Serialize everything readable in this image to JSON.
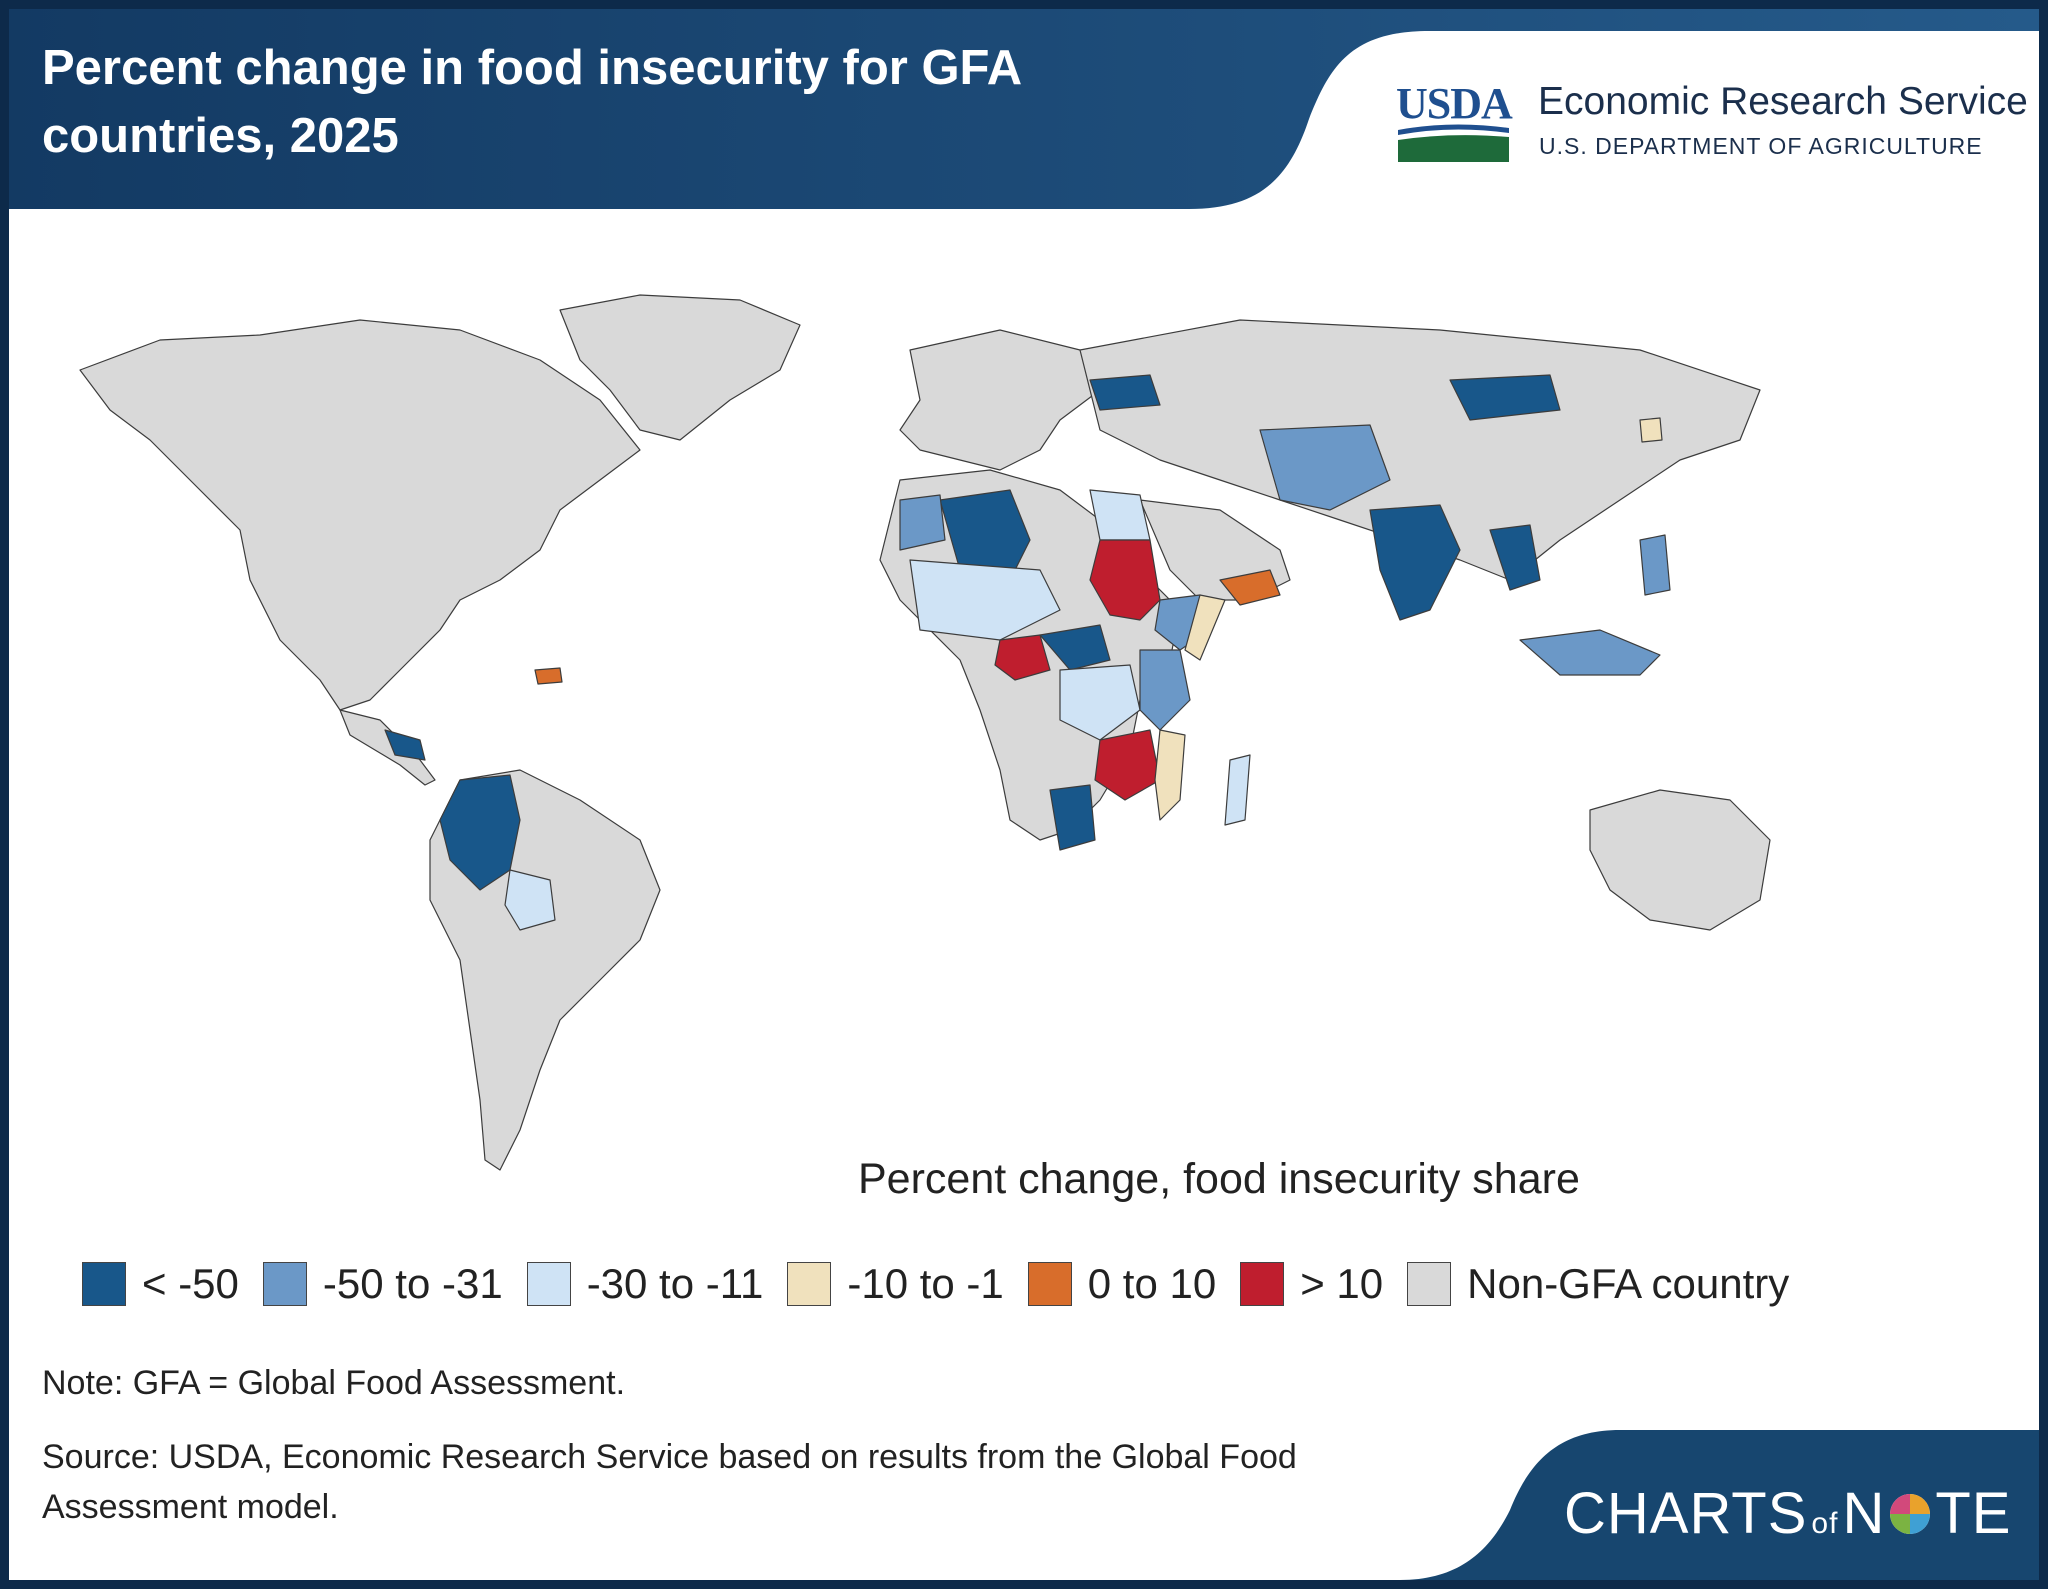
{
  "title": "Percent change in food insecurity for GFA countries, 2025",
  "branding": {
    "usda_mark": "USDA",
    "agency": "Economic Research Service",
    "department": "U.S. DEPARTMENT OF AGRICULTURE",
    "series_mark_part1": "CHARTS",
    "series_mark_part2": "of",
    "series_mark_part3": "N",
    "series_mark_part4": "TE"
  },
  "legend": {
    "title": "Percent change, food insecurity share",
    "items": [
      {
        "label": "< -50",
        "color": "#18578a"
      },
      {
        "label": "-50 to -31",
        "color": "#6b98c7"
      },
      {
        "label": "-30 to -11",
        "color": "#cfe3f5"
      },
      {
        "label": "-10 to -1",
        "color": "#f0e1bd"
      },
      {
        "label": "0 to 10",
        "color": "#d86d2b"
      },
      {
        "label": "> 10",
        "color": "#bf1e2e"
      },
      {
        "label": "Non-GFA country",
        "color": "#d9d9d9"
      }
    ]
  },
  "note": "Note: GFA = Global Food Assessment.",
  "source": "Source: USDA, Economic Research Service based on results from the Global Food Assessment model.",
  "colors": {
    "header_bg": "#1f4f7d",
    "frame": "#0d2a4a",
    "non_gfa": "#d9d9d9"
  }
}
